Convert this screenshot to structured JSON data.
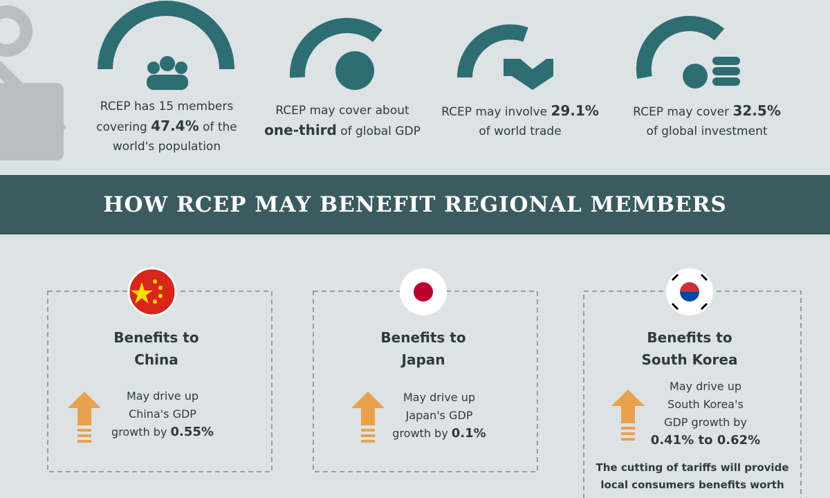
{
  "stats": [
    {
      "lines": [
        [
          {
            "text": "RCEP has 15 members"
          }
        ],
        [
          {
            "text": "covering "
          },
          {
            "text": "47.4%",
            "bold": true
          },
          {
            "text": " of the"
          }
        ],
        [
          {
            "text": "world's population"
          }
        ]
      ]
    },
    {
      "lines": [
        [
          {
            "text": "RCEP may cover about"
          }
        ],
        [
          {
            "text": "one-third",
            "bold": true
          },
          {
            "text": " of global GDP"
          }
        ]
      ]
    },
    {
      "lines": [
        [
          {
            "text": "RCEP may involve "
          },
          {
            "text": "29.1%",
            "bold": true
          }
        ],
        [
          {
            "text": "of world trade"
          }
        ]
      ]
    },
    {
      "lines": [
        [
          {
            "text": "RCEP may cover "
          },
          {
            "text": "32.5%",
            "bold": true
          }
        ],
        [
          {
            "text": "of global investment"
          }
        ]
      ]
    }
  ],
  "banner": "HOW RCEP MAY BENEFIT REGIONAL MEMBERS",
  "cards": [
    {
      "title_lines": [
        "Benefits to",
        "China"
      ],
      "lines": [
        [
          {
            "text": "May drive up"
          }
        ],
        [
          {
            "text": "China's GDP"
          }
        ],
        [
          {
            "text": "growth by "
          },
          {
            "text": "0.55%",
            "bold": true
          }
        ]
      ]
    },
    {
      "title_lines": [
        "Benefits to",
        "Japan"
      ],
      "lines": [
        [
          {
            "text": "May drive up"
          }
        ],
        [
          {
            "text": "Japan's GDP"
          }
        ],
        [
          {
            "text": "growth by "
          },
          {
            "text": "0.1%",
            "bold": true
          }
        ]
      ]
    },
    {
      "title_lines": [
        "Benefits to",
        "South Korea"
      ],
      "lines": [
        [
          {
            "text": "May drive up"
          }
        ],
        [
          {
            "text": "South Korea's"
          }
        ],
        [
          {
            "text": "GDP growth by"
          }
        ],
        [
          {
            "text": "0.41% to 0.62%",
            "bold": true
          }
        ]
      ],
      "note_lines": [
        "The cutting of tariffs will provide",
        "local consumers benefits worth"
      ]
    }
  ]
}
